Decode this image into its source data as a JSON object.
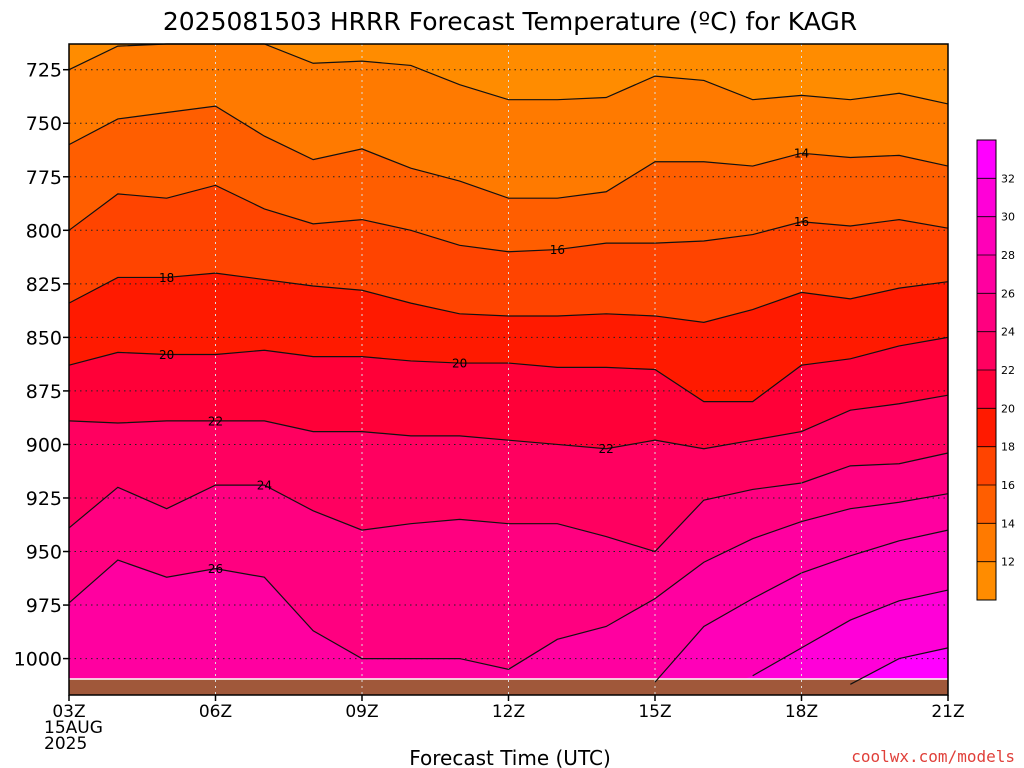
{
  "chart_data": {
    "type": "contour",
    "title": "2025081503 HRRR Forecast Temperature (ºC) for KAGR",
    "xlabel": "Forecast Time (UTC)",
    "x_ticks": [
      {
        "hour": 3,
        "lines": [
          "03Z",
          "15AUG",
          "2025"
        ]
      },
      {
        "hour": 6,
        "lines": [
          "06Z"
        ]
      },
      {
        "hour": 9,
        "lines": [
          "09Z"
        ]
      },
      {
        "hour": 12,
        "lines": [
          "12Z"
        ]
      },
      {
        "hour": 15,
        "lines": [
          "15Z"
        ]
      },
      {
        "hour": 18,
        "lines": [
          "18Z"
        ]
      },
      {
        "hour": 21,
        "lines": [
          "21Z"
        ]
      }
    ],
    "xlim": [
      3,
      21
    ],
    "y_ticks": [
      725,
      750,
      775,
      800,
      825,
      850,
      875,
      900,
      925,
      950,
      975,
      1000
    ],
    "ylim": [
      713,
      1017
    ],
    "hours": [
      3,
      4,
      5,
      6,
      7,
      8,
      9,
      10,
      11,
      12,
      13,
      14,
      15,
      16,
      17,
      18,
      19,
      20,
      21
    ],
    "contour_levels": [
      12,
      14,
      16,
      18,
      20,
      22,
      24,
      26,
      28,
      30,
      32
    ],
    "isotherms": [
      {
        "level": 12,
        "p": [
          725,
          714,
          710,
          710,
          713,
          722,
          721,
          723,
          732,
          739,
          739,
          738,
          728,
          730,
          739,
          737,
          739,
          736,
          741
        ]
      },
      {
        "level": 14,
        "p": [
          760,
          748,
          745,
          742,
          756,
          767,
          762,
          771,
          777,
          785,
          785,
          782,
          768,
          768,
          770,
          764,
          766,
          765,
          770
        ]
      },
      {
        "level": 16,
        "p": [
          800,
          783,
          785,
          779,
          790,
          797,
          795,
          800,
          807,
          810,
          809,
          806,
          806,
          805,
          802,
          796,
          798,
          795,
          799
        ]
      },
      {
        "level": 18,
        "p": [
          834,
          822,
          822,
          820,
          823,
          826,
          828,
          834,
          839,
          840,
          840,
          839,
          840,
          843,
          837,
          829,
          832,
          827,
          824
        ]
      },
      {
        "level": 20,
        "p": [
          863,
          857,
          858,
          858,
          856,
          859,
          859,
          861,
          862,
          862,
          864,
          864,
          865,
          880,
          880,
          863,
          860,
          854,
          850
        ]
      },
      {
        "level": 22,
        "p": [
          889,
          890,
          889,
          889,
          889,
          894,
          894,
          896,
          896,
          898,
          900,
          902,
          898,
          902,
          898,
          894,
          884,
          881,
          877
        ]
      },
      {
        "level": 24,
        "p": [
          939,
          920,
          930,
          919,
          919,
          931,
          940,
          937,
          935,
          937,
          937,
          943,
          950,
          926,
          921,
          918,
          910,
          909,
          904
        ]
      },
      {
        "level": 26,
        "p": [
          974,
          954,
          962,
          958,
          962,
          987,
          1000,
          1000,
          1000,
          1005,
          991,
          985,
          972,
          955,
          944,
          936,
          930,
          927,
          923
        ]
      },
      {
        "level": 28,
        "p": [
          1060,
          1060,
          1060,
          1060,
          1060,
          1060,
          1060,
          1060,
          1060,
          1060,
          1035,
          1023,
          1011,
          985,
          972,
          960,
          952,
          945,
          940
        ]
      },
      {
        "level": 30,
        "p": [
          1060,
          1060,
          1060,
          1060,
          1060,
          1060,
          1060,
          1060,
          1060,
          1060,
          1060,
          1060,
          1060,
          1020,
          1008,
          995,
          982,
          973,
          968
        ]
      },
      {
        "level": 32,
        "p": [
          1060,
          1060,
          1060,
          1060,
          1060,
          1060,
          1060,
          1060,
          1060,
          1060,
          1060,
          1060,
          1060,
          1060,
          1060,
          1030,
          1012,
          1000,
          995
        ]
      }
    ],
    "contour_labels": [
      {
        "text": "14",
        "hour": 18,
        "p": 764
      },
      {
        "text": "16",
        "hour": 13,
        "p": 809
      },
      {
        "text": "16",
        "hour": 18,
        "p": 796
      },
      {
        "text": "18",
        "hour": 5,
        "p": 822
      },
      {
        "text": "20",
        "hour": 5,
        "p": 858
      },
      {
        "text": "20",
        "hour": 11,
        "p": 862
      },
      {
        "text": "22",
        "hour": 6,
        "p": 889
      },
      {
        "text": "22",
        "hour": 14,
        "p": 902
      },
      {
        "text": "24",
        "hour": 7,
        "p": 919
      },
      {
        "text": "26",
        "hour": 6,
        "p": 958
      }
    ],
    "colorbar": {
      "tick_labels": [
        "12",
        "14",
        "16",
        "18",
        "20",
        "22",
        "24",
        "26",
        "28",
        "30",
        "32"
      ],
      "colors": [
        "#ff8c00",
        "#ff7a00",
        "#ff5e00",
        "#ff4400",
        "#ff1a00",
        "#ff0038",
        "#ff0060",
        "#ff0080",
        "#ff00a0",
        "#ff00b8",
        "#ff00d8",
        "#ff00ff"
      ]
    },
    "grid": true,
    "ground_color": "#a0583a"
  },
  "watermark": "coolwx.com/models"
}
